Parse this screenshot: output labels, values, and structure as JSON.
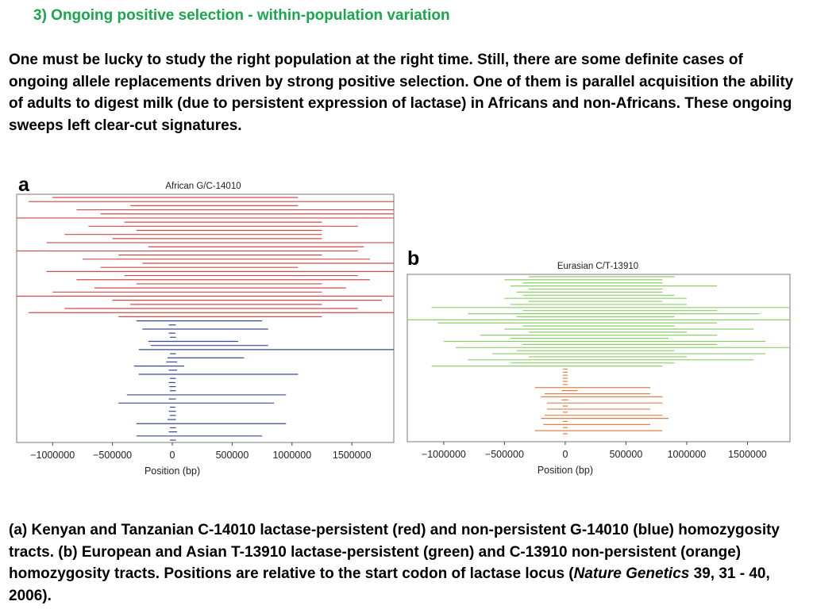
{
  "slide": {
    "title": "3) Ongoing positive selection - within-population variation",
    "intro": "One must be lucky to study the right population at the right time. Still, there are some definite cases of ongoing allele replacements driven by strong positive selection. One of them is parallel acquisition the ability of adults to digest milk (due to persistent expression of lactase) in Africans and non-Africans. These ongoing sweeps left clear-cut signatures.",
    "caption_before": "(a) Kenyan and Tanzanian C-14010 lactase-persistent (red) and non-persistent G-14010 (blue) homozygosity tracts. (b) European and Asian T-13910 lactase-persistent (green) and C-13910 non-persistent (orange) homozygosity tracts. Positions are relative to the start codon of lactase locus (",
    "caption_journal": "Nature Genetics",
    "caption_after": " 39, 31 - 40, 2006)."
  },
  "colors": {
    "red": "#d24a4a",
    "blue": "#3a4a90",
    "green": "#8ccf6a",
    "orange": "#e0804a",
    "frame": "#7a7a7a"
  },
  "chart_data": [
    {
      "type": "interval",
      "panel": "a",
      "title": "African G/C-14010",
      "xlabel": "Position (bp)",
      "ylabel": "",
      "xlim": [
        -1300000,
        1850000
      ],
      "x_ticks": [
        -1000000,
        -500000,
        0,
        500000,
        1000000,
        1500000
      ],
      "x_tick_labels": [
        "−1000000",
        "−500000",
        "0",
        "500000",
        "1000000",
        "1500000"
      ],
      "grid": false,
      "series": [
        {
          "color_key": "red",
          "tracts": [
            [
              -1000000,
              1050000
            ],
            [
              -1200000,
              1850000
            ],
            [
              -350000,
              1050000
            ],
            [
              -800000,
              1850000
            ],
            [
              -600000,
              1850000
            ],
            [
              -1300000,
              1850000
            ],
            [
              -400000,
              1250000
            ],
            [
              -700000,
              1550000
            ],
            [
              -300000,
              1250000
            ],
            [
              -900000,
              1250000
            ],
            [
              -500000,
              1250000
            ],
            [
              -1050000,
              1850000
            ],
            [
              -200000,
              1600000
            ],
            [
              -1300000,
              1550000
            ],
            [
              -450000,
              1250000
            ],
            [
              -750000,
              1650000
            ],
            [
              -250000,
              1850000
            ],
            [
              -600000,
              1050000
            ],
            [
              -1050000,
              1850000
            ],
            [
              -400000,
              1550000
            ],
            [
              -800000,
              1650000
            ],
            [
              -300000,
              1250000
            ],
            [
              -650000,
              1450000
            ],
            [
              -1000000,
              1250000
            ],
            [
              -1300000,
              1850000
            ],
            [
              -500000,
              1750000
            ],
            [
              -350000,
              1250000
            ],
            [
              -900000,
              1550000
            ],
            [
              -1200000,
              1850000
            ],
            [
              -450000,
              1250000
            ]
          ]
        },
        {
          "color_key": "blue",
          "tracts": [
            [
              -300000,
              750000
            ],
            [
              -30000,
              30000
            ],
            [
              -250000,
              800000
            ],
            [
              -30000,
              25000
            ],
            [
              -20000,
              30000
            ],
            [
              -200000,
              550000
            ],
            [
              -180000,
              800000
            ],
            [
              -280000,
              1850000
            ],
            [
              -20000,
              30000
            ],
            [
              -40000,
              600000
            ],
            [
              -50000,
              40000
            ],
            [
              -320000,
              100000
            ],
            [
              -30000,
              40000
            ],
            [
              -280000,
              1050000
            ],
            [
              -20000,
              30000
            ],
            [
              -30000,
              25000
            ],
            [
              -25000,
              30000
            ],
            [
              -20000,
              30000
            ],
            [
              -380000,
              950000
            ],
            [
              -30000,
              30000
            ],
            [
              -450000,
              850000
            ],
            [
              -20000,
              25000
            ],
            [
              -30000,
              30000
            ],
            [
              -20000,
              30000
            ],
            [
              -40000,
              30000
            ],
            [
              -300000,
              950000
            ],
            [
              -20000,
              30000
            ],
            [
              -30000,
              40000
            ],
            [
              -300000,
              750000
            ],
            [
              -20000,
              30000
            ]
          ]
        }
      ]
    },
    {
      "type": "interval",
      "panel": "b",
      "title": "Eurasian C/T-13910",
      "xlabel": "Position (bp)",
      "ylabel": "",
      "xlim": [
        -1300000,
        1850000
      ],
      "x_ticks": [
        -1000000,
        -500000,
        0,
        500000,
        1000000,
        1500000
      ],
      "x_tick_labels": [
        "−1000000",
        "−500000",
        "0",
        "500000",
        "1000000",
        "1500000"
      ],
      "grid": false,
      "series": [
        {
          "color_key": "green",
          "tracts": [
            [
              -300000,
              900000
            ],
            [
              -500000,
              800000
            ],
            [
              -350000,
              800000
            ],
            [
              -450000,
              1250000
            ],
            [
              -300000,
              800000
            ],
            [
              -400000,
              800000
            ],
            [
              -350000,
              900000
            ],
            [
              -500000,
              1000000
            ],
            [
              -300000,
              800000
            ],
            [
              -450000,
              1000000
            ],
            [
              -1100000,
              1850000
            ],
            [
              -350000,
              1250000
            ],
            [
              -800000,
              1600000
            ],
            [
              -400000,
              900000
            ],
            [
              -1300000,
              1850000
            ],
            [
              -1050000,
              1250000
            ],
            [
              -350000,
              900000
            ],
            [
              -500000,
              1550000
            ],
            [
              -300000,
              1000000
            ],
            [
              -700000,
              1250000
            ],
            [
              -450000,
              850000
            ],
            [
              -1000000,
              1650000
            ],
            [
              -350000,
              1250000
            ],
            [
              -900000,
              1850000
            ],
            [
              -400000,
              900000
            ],
            [
              -600000,
              1650000
            ],
            [
              -300000,
              1000000
            ],
            [
              -800000,
              1550000
            ],
            [
              -450000,
              900000
            ],
            [
              -1100000,
              800000
            ]
          ]
        },
        {
          "color_key": "orange",
          "tracts": [
            [
              -20000,
              20000
            ],
            [
              -20000,
              20000
            ],
            [
              -20000,
              20000
            ],
            [
              -20000,
              20000
            ],
            [
              -20000,
              20000
            ],
            [
              -20000,
              20000
            ],
            [
              -250000,
              700000
            ],
            [
              -30000,
              100000
            ],
            [
              -170000,
              700000
            ],
            [
              -200000,
              800000
            ],
            [
              -30000,
              25000
            ],
            [
              -150000,
              800000
            ],
            [
              -20000,
              20000
            ],
            [
              -150000,
              700000
            ],
            [
              -20000,
              20000
            ],
            [
              -170000,
              800000
            ],
            [
              -200000,
              850000
            ],
            [
              -20000,
              20000
            ],
            [
              -180000,
              700000
            ],
            [
              -20000,
              20000
            ],
            [
              -250000,
              800000
            ],
            [
              -20000,
              20000
            ]
          ]
        }
      ]
    }
  ]
}
